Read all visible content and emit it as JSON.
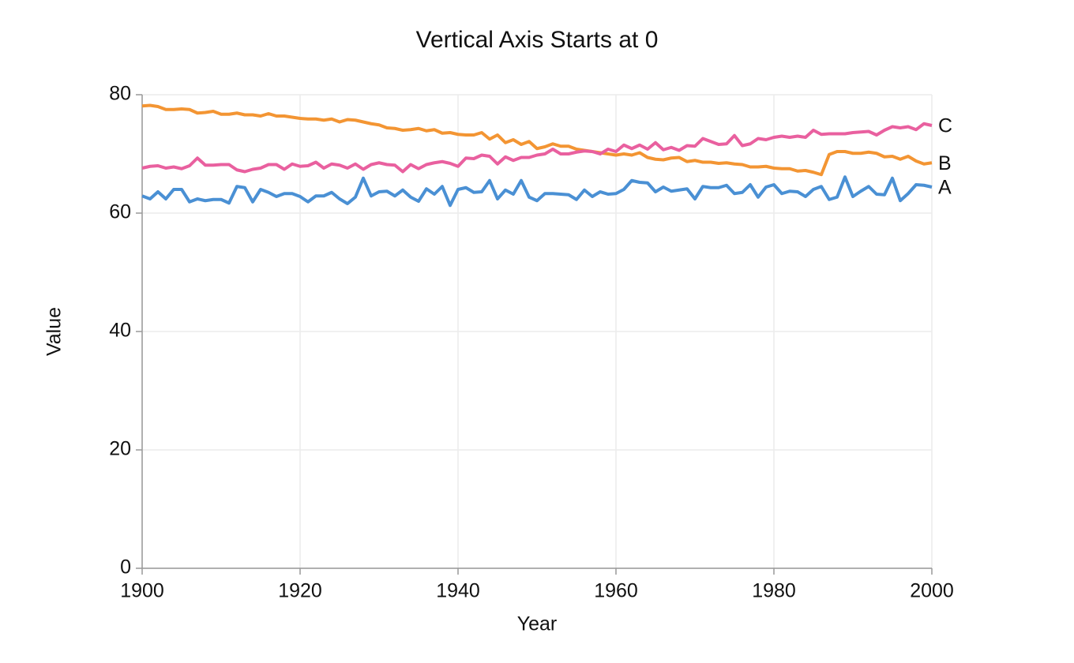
{
  "chart_data": {
    "type": "line",
    "title": "Vertical Axis Starts at 0",
    "x_label": "Year",
    "y_label": "Value",
    "x": [
      1900,
      1901,
      1902,
      1903,
      1904,
      1905,
      1906,
      1907,
      1908,
      1909,
      1910,
      1911,
      1912,
      1913,
      1914,
      1915,
      1916,
      1917,
      1918,
      1919,
      1920,
      1921,
      1922,
      1923,
      1924,
      1925,
      1926,
      1927,
      1928,
      1929,
      1930,
      1931,
      1932,
      1933,
      1934,
      1935,
      1936,
      1937,
      1938,
      1939,
      1940,
      1941,
      1942,
      1943,
      1944,
      1945,
      1946,
      1947,
      1948,
      1949,
      1950,
      1951,
      1952,
      1953,
      1954,
      1955,
      1956,
      1957,
      1958,
      1959,
      1960,
      1961,
      1962,
      1963,
      1964,
      1965,
      1966,
      1967,
      1968,
      1969,
      1970,
      1971,
      1972,
      1973,
      1974,
      1975,
      1976,
      1977,
      1978,
      1979,
      1980,
      1981,
      1982,
      1983,
      1984,
      1985,
      1986,
      1987,
      1988,
      1989,
      1990,
      1991,
      1992,
      1993,
      1994,
      1995,
      1996,
      1997,
      1998,
      1999,
      2000
    ],
    "series": [
      {
        "name": "A",
        "color": "#4a90d4",
        "values": [
          62.9,
          62.4,
          63.6,
          62.4,
          64.0,
          64.0,
          61.9,
          62.4,
          62.1,
          62.3,
          62.3,
          61.7,
          64.5,
          64.3,
          61.9,
          64.0,
          63.5,
          62.8,
          63.3,
          63.3,
          62.8,
          61.9,
          62.9,
          62.9,
          63.5,
          62.4,
          61.6,
          62.7,
          65.9,
          62.9,
          63.6,
          63.7,
          62.9,
          63.9,
          62.7,
          62.0,
          64.1,
          63.2,
          64.5,
          61.3,
          64.0,
          64.3,
          63.5,
          63.6,
          65.5,
          62.4,
          63.9,
          63.2,
          65.5,
          62.7,
          62.1,
          63.3,
          63.3,
          63.2,
          63.1,
          62.3,
          63.9,
          62.8,
          63.6,
          63.2,
          63.3,
          64.0,
          65.5,
          65.2,
          65.1,
          63.6,
          64.4,
          63.7,
          63.9,
          64.1,
          62.4,
          64.5,
          64.3,
          64.3,
          64.7,
          63.3,
          63.5,
          64.8,
          62.7,
          64.4,
          64.8,
          63.3,
          63.7,
          63.6,
          62.8,
          64.0,
          64.5,
          62.3,
          62.7,
          66.1,
          62.8,
          63.7,
          64.5,
          63.2,
          63.1,
          65.9,
          62.1,
          63.3,
          64.8,
          64.7,
          64.4
        ]
      },
      {
        "name": "B",
        "color": "#f39533",
        "values": [
          78.1,
          78.2,
          78.0,
          77.5,
          77.5,
          77.6,
          77.5,
          76.9,
          77.0,
          77.2,
          76.7,
          76.7,
          76.9,
          76.6,
          76.6,
          76.4,
          76.8,
          76.4,
          76.4,
          76.2,
          76.0,
          75.9,
          75.9,
          75.7,
          75.9,
          75.4,
          75.8,
          75.7,
          75.4,
          75.1,
          74.9,
          74.4,
          74.3,
          74.0,
          74.1,
          74.3,
          73.9,
          74.1,
          73.5,
          73.6,
          73.3,
          73.2,
          73.2,
          73.6,
          72.5,
          73.2,
          71.9,
          72.4,
          71.6,
          72.1,
          70.9,
          71.2,
          71.7,
          71.3,
          71.3,
          70.8,
          70.6,
          70.4,
          70.2,
          70.0,
          69.8,
          70.0,
          69.8,
          70.2,
          69.4,
          69.1,
          69.0,
          69.3,
          69.4,
          68.7,
          68.9,
          68.6,
          68.6,
          68.4,
          68.5,
          68.3,
          68.2,
          67.8,
          67.8,
          67.9,
          67.6,
          67.5,
          67.5,
          67.1,
          67.2,
          66.9,
          66.5,
          69.9,
          70.4,
          70.4,
          70.1,
          70.1,
          70.3,
          70.1,
          69.5,
          69.6,
          69.1,
          69.6,
          68.8,
          68.3,
          68.5
        ]
      },
      {
        "name": "C",
        "color": "#e9609f",
        "values": [
          67.6,
          67.9,
          68.0,
          67.6,
          67.8,
          67.5,
          68.0,
          69.3,
          68.1,
          68.1,
          68.2,
          68.2,
          67.3,
          67.0,
          67.4,
          67.6,
          68.2,
          68.2,
          67.4,
          68.3,
          67.9,
          68.0,
          68.6,
          67.6,
          68.3,
          68.1,
          67.6,
          68.3,
          67.4,
          68.2,
          68.5,
          68.2,
          68.1,
          67.0,
          68.2,
          67.5,
          68.2,
          68.5,
          68.7,
          68.4,
          67.9,
          69.3,
          69.2,
          69.8,
          69.6,
          68.3,
          69.5,
          68.9,
          69.4,
          69.4,
          69.8,
          70.0,
          70.8,
          70.0,
          70.0,
          70.3,
          70.5,
          70.4,
          70.0,
          70.8,
          70.4,
          71.5,
          70.9,
          71.5,
          70.8,
          71.9,
          70.7,
          71.1,
          70.6,
          71.4,
          71.3,
          72.6,
          72.1,
          71.6,
          71.7,
          73.1,
          71.4,
          71.7,
          72.6,
          72.4,
          72.8,
          73.0,
          72.8,
          73.0,
          72.8,
          74.0,
          73.3,
          73.4,
          73.4,
          73.4,
          73.6,
          73.7,
          73.8,
          73.2,
          74.0,
          74.6,
          74.4,
          74.6,
          74.1,
          75.1,
          74.8
        ]
      }
    ],
    "xlim": [
      1900,
      2000
    ],
    "xticks": [
      1900,
      1920,
      1940,
      1960,
      1980,
      2000
    ],
    "ylim": [
      0,
      80
    ],
    "yticks": [
      0,
      20,
      40,
      60,
      80
    ],
    "grid": true
  }
}
